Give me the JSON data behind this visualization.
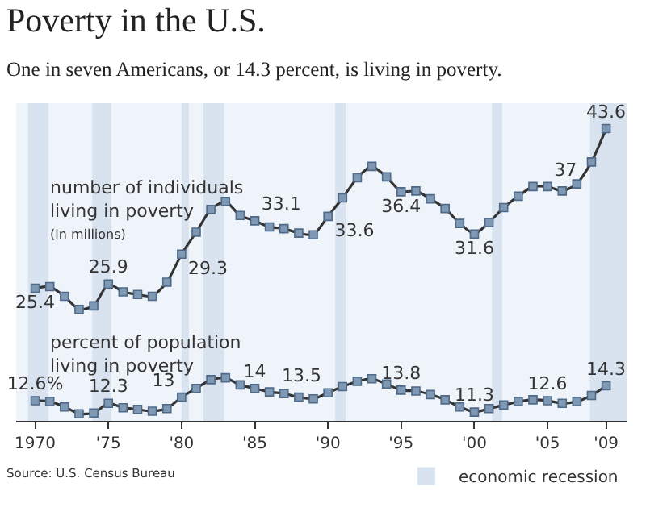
{
  "chart_data": {
    "type": "line",
    "title": "Poverty in the U.S.",
    "subtitle": "One in seven Americans, or 14.3 percent, is living in poverty.",
    "x": [
      1970,
      1971,
      1972,
      1973,
      1974,
      1975,
      1976,
      1977,
      1978,
      1979,
      1980,
      1981,
      1982,
      1983,
      1984,
      1985,
      1986,
      1987,
      1988,
      1989,
      1990,
      1991,
      1992,
      1993,
      1994,
      1995,
      1996,
      1997,
      1998,
      1999,
      2000,
      2001,
      2002,
      2003,
      2004,
      2005,
      2006,
      2007,
      2008,
      2009
    ],
    "series": [
      {
        "name": "number of individuals living in poverty",
        "color": "#333333",
        "values": [
          25.4,
          25.6,
          24.5,
          23.0,
          23.4,
          25.9,
          25.0,
          24.7,
          24.5,
          26.1,
          29.3,
          31.8,
          34.4,
          35.3,
          33.7,
          33.1,
          32.4,
          32.2,
          31.7,
          31.5,
          33.6,
          35.7,
          38.0,
          39.3,
          38.1,
          36.4,
          36.5,
          35.6,
          34.5,
          32.8,
          31.6,
          32.9,
          34.6,
          35.9,
          37.0,
          37.0,
          36.5,
          37.3,
          39.8,
          43.6
        ],
        "value_labels": [
          "25.4",
          null,
          null,
          null,
          null,
          "25.9",
          null,
          null,
          null,
          null,
          "29.3",
          null,
          null,
          null,
          null,
          "33.1",
          null,
          null,
          null,
          null,
          "33.6",
          null,
          null,
          null,
          null,
          "36.4",
          null,
          null,
          null,
          null,
          "31.6",
          null,
          null,
          null,
          null,
          "37",
          null,
          null,
          null,
          "43.6"
        ]
      },
      {
        "name": "percent of population living in poverty",
        "color": "#333333",
        "values": [
          12.6,
          12.5,
          11.9,
          11.1,
          11.2,
          12.3,
          11.8,
          11.6,
          11.4,
          11.7,
          13.0,
          14.0,
          15.0,
          15.2,
          14.4,
          14.0,
          13.6,
          13.4,
          13.0,
          12.8,
          13.5,
          14.2,
          14.8,
          15.1,
          14.5,
          13.8,
          13.7,
          13.3,
          12.7,
          11.9,
          11.3,
          11.7,
          12.1,
          12.5,
          12.7,
          12.6,
          12.3,
          12.5,
          13.2,
          14.3
        ],
        "value_labels": [
          "12.6%",
          null,
          null,
          null,
          null,
          "12.3",
          null,
          null,
          null,
          null,
          "13",
          null,
          null,
          null,
          null,
          "14",
          null,
          null,
          null,
          null,
          "13.5",
          null,
          null,
          null,
          null,
          "13.8",
          null,
          null,
          null,
          null,
          "11.3",
          null,
          null,
          null,
          null,
          "12.6",
          null,
          null,
          null,
          "14.3"
        ]
      }
    ],
    "xlim": [
      1968.7,
      2010.4
    ],
    "xticks": [
      {
        "value": 1970,
        "label": "1970"
      },
      {
        "value": 1975,
        "label": "'75"
      },
      {
        "value": 1980,
        "label": "'80"
      },
      {
        "value": 1985,
        "label": "'85"
      },
      {
        "value": 1990,
        "label": "'90"
      },
      {
        "value": 1995,
        "label": "'95"
      },
      {
        "value": 2000,
        "label": "'00"
      },
      {
        "value": 2005,
        "label": "'05"
      },
      {
        "value": 2009,
        "label": "'09"
      }
    ],
    "ylim": [
      10.3,
      46.5
    ],
    "tick_labels": "x",
    "bands": [
      {
        "axis": "x",
        "from": 1969.5,
        "to": 1970.9,
        "label": "economic recession",
        "color": "#d8e3ef"
      },
      {
        "axis": "x",
        "from": 1973.9,
        "to": 1975.2,
        "color": "#d8e3ef"
      },
      {
        "axis": "x",
        "from": 1980.0,
        "to": 1980.5,
        "color": "#d8e3ef"
      },
      {
        "axis": "x",
        "from": 1981.5,
        "to": 1982.9,
        "color": "#d8e3ef"
      },
      {
        "axis": "x",
        "from": 1990.5,
        "to": 1991.2,
        "color": "#d8e3ef"
      },
      {
        "axis": "x",
        "from": 2001.2,
        "to": 2001.9,
        "color": "#d8e3ef"
      },
      {
        "axis": "x",
        "from": 2007.9,
        "to": 2010.4,
        "color": "#d8e3ef"
      }
    ],
    "annotations": [
      "(in millions)",
      "Source: U.S. Census Bureau"
    ],
    "marker": "square",
    "line_style": "solid",
    "grid": false,
    "legend": "bottom right"
  }
}
